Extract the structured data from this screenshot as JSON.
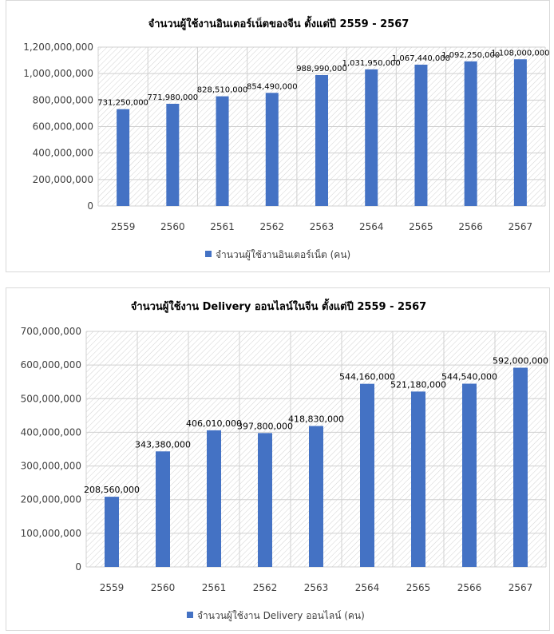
{
  "chart_data": [
    {
      "type": "bar",
      "title": "จำนวนผู้ใช้งานอินเตอร์เน็ตของจีน ตั้งแต่ปี 2559 - 2567",
      "categories": [
        "2559",
        "2560",
        "2561",
        "2562",
        "2563",
        "2564",
        "2565",
        "2566",
        "2567"
      ],
      "series": [
        {
          "name": "จำนวนผู้ใช้งานอินเตอร์เน็ต (คน)",
          "values": [
            731250000,
            771980000,
            828510000,
            854490000,
            988990000,
            1031950000,
            1067440000,
            1092250000,
            1108000000
          ],
          "value_labels": [
            "731,250,000",
            "771,980,000",
            "828,510,000",
            "854,490,000",
            "988,990,000",
            "1,031,950,000",
            "1,067,440,000",
            "1,092,250,000",
            "1,108,000,000"
          ]
        }
      ],
      "yticks": [
        "0",
        "200,000,000",
        "400,000,000",
        "600,000,000",
        "800,000,000",
        "1,000,000,000",
        "1,200,000,000"
      ],
      "ylim": [
        0,
        1200000000
      ],
      "xlabel": "",
      "ylabel": "",
      "legend_position": "bottom",
      "grid": true,
      "bar_color": "#4472c4"
    },
    {
      "type": "bar",
      "title": "จำนวนผู้ใช้งาน Delivery ออนไลน์ในจีน ตั้งแต่ปี 2559 - 2567",
      "categories": [
        "2559",
        "2560",
        "2561",
        "2562",
        "2563",
        "2564",
        "2565",
        "2566",
        "2567"
      ],
      "series": [
        {
          "name": "จำนวนผู้ใช้งาน Delivery ออนไลน์ (คน)",
          "values": [
            208560000,
            343380000,
            406010000,
            397800000,
            418830000,
            544160000,
            521180000,
            544540000,
            592000000
          ],
          "value_labels": [
            "208,560,000",
            "343,380,000",
            "406,010,000",
            "397,800,000",
            "418,830,000",
            "544,160,000",
            "521,180,000",
            "544,540,000",
            "592,000,000"
          ]
        }
      ],
      "yticks": [
        "0",
        "100,000,000",
        "200,000,000",
        "300,000,000",
        "400,000,000",
        "500,000,000",
        "600,000,000",
        "700,000,000"
      ],
      "ylim": [
        0,
        700000000
      ],
      "xlabel": "",
      "ylabel": "",
      "legend_position": "bottom",
      "grid": true,
      "bar_color": "#4472c4"
    }
  ]
}
